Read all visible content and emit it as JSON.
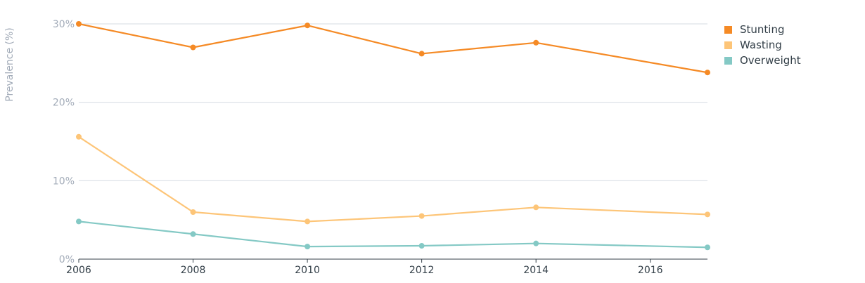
{
  "chart_data": {
    "type": "line",
    "title": "",
    "xlabel": "",
    "ylabel": "Prevalence (%)",
    "x": [
      2006,
      2008,
      2010,
      2012,
      2014,
      2017
    ],
    "x_ticks": [
      "2006",
      "2008",
      "2010",
      "2012",
      "2014",
      "2016"
    ],
    "x_tick_values": [
      2006,
      2008,
      2010,
      2012,
      2014,
      2016
    ],
    "y_ticks": [
      "0%",
      "10%",
      "20%",
      "30%"
    ],
    "y_tick_values": [
      0,
      10,
      20,
      30
    ],
    "ylim": [
      0,
      30
    ],
    "xlim": [
      2006,
      2017
    ],
    "grid": true,
    "legend_position": "top-right",
    "series": [
      {
        "name": "Stunting",
        "color": "#f58a25",
        "values": [
          30.0,
          27.0,
          29.8,
          26.2,
          27.6,
          23.8
        ]
      },
      {
        "name": "Wasting",
        "color": "#fdc578",
        "values": [
          15.6,
          6.0,
          4.8,
          5.5,
          6.6,
          5.7
        ]
      },
      {
        "name": "Overweight",
        "color": "#84c9c5",
        "values": [
          4.8,
          3.2,
          1.6,
          1.7,
          2.0,
          1.5
        ]
      }
    ]
  }
}
